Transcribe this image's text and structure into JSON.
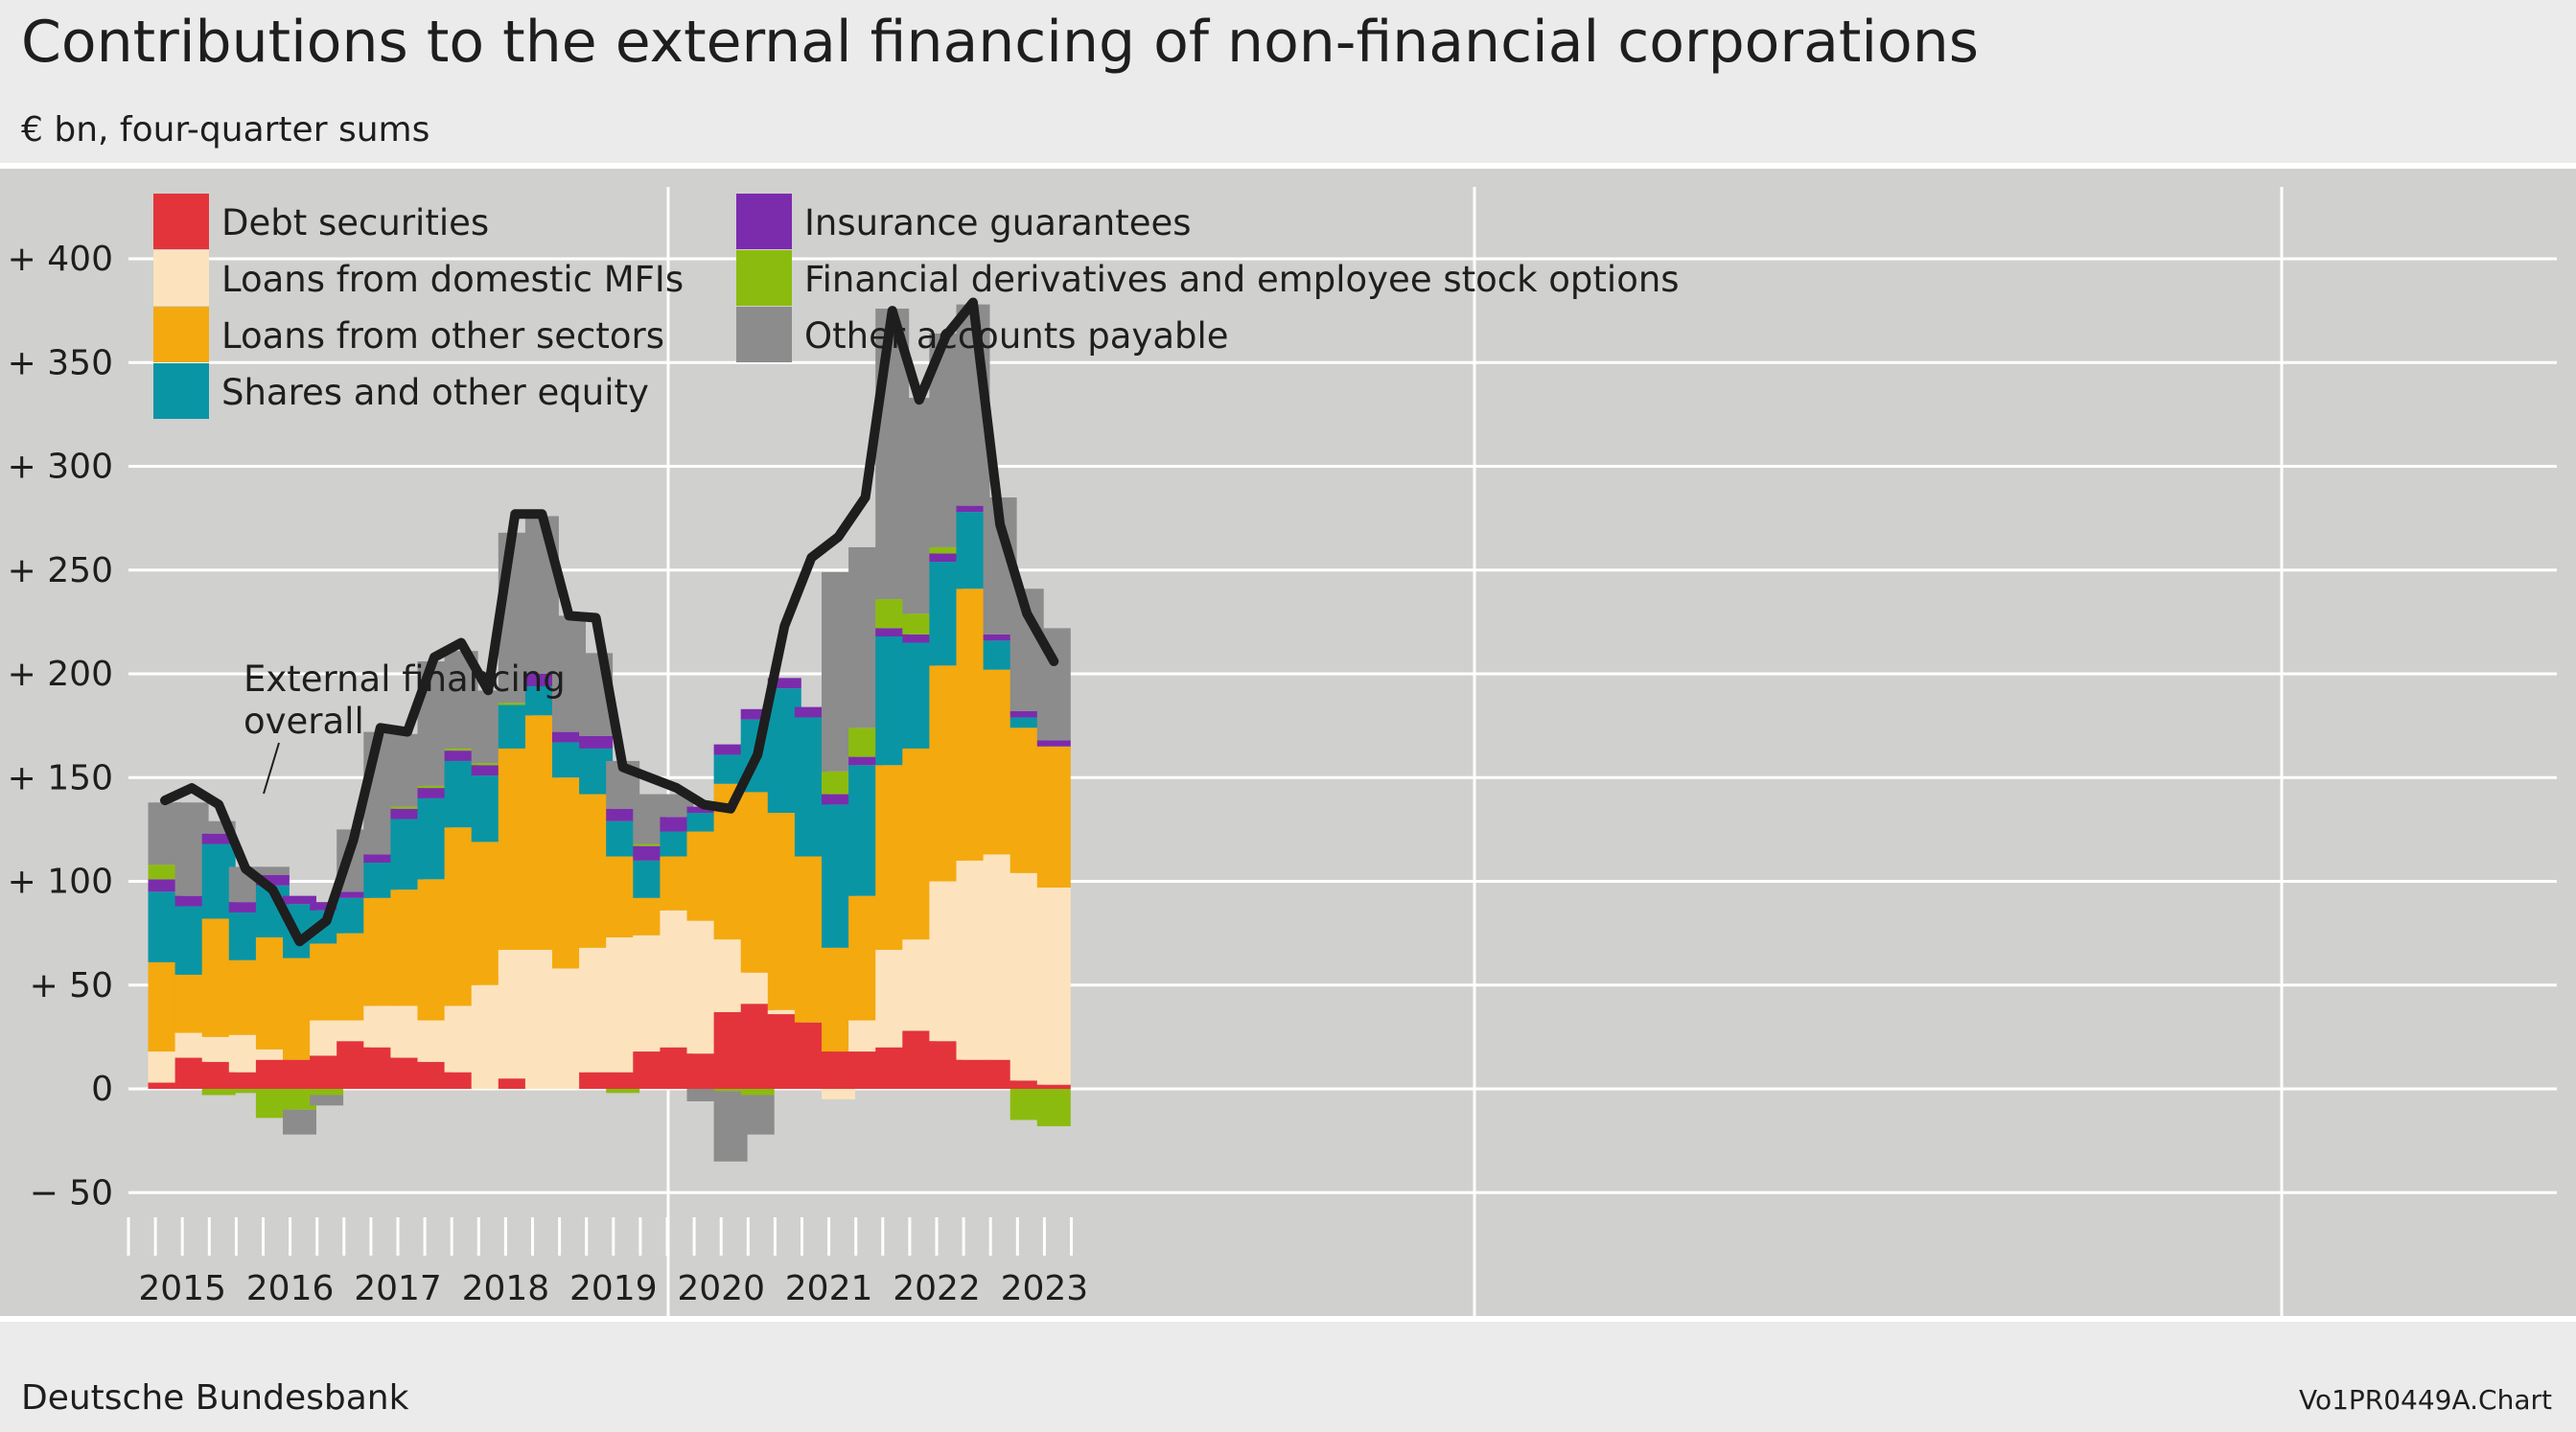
{
  "title": "Contributions to the external financing of non-financial corporations",
  "subtitle": "€ bn, four-quarter sums",
  "source": "Deutsche Bundesbank",
  "chart_code": "Vo1PR0449A.Chart",
  "annotation": {
    "line1": "External financing",
    "line2": "overall"
  },
  "chart_data": {
    "type": "bar",
    "stacked": true,
    "ylim": [
      -60,
      440
    ],
    "yticks": [
      -50,
      0,
      50,
      100,
      150,
      200,
      250,
      300,
      350,
      400
    ],
    "ytick_labels": [
      "− 50",
      "0",
      "+ 50",
      "+ 100",
      "+ 150",
      "+ 200",
      "+ 250",
      "+ 300",
      "+ 350",
      "+ 400"
    ],
    "year_labels": [
      "2015",
      "2016",
      "2017",
      "2018",
      "2019",
      "2020",
      "2021",
      "2022",
      "2023"
    ],
    "categories": [
      "2015 Q1",
      "2015 Q2",
      "2015 Q3",
      "2015 Q4",
      "2016 Q1",
      "2016 Q2",
      "2016 Q3",
      "2016 Q4",
      "2017 Q1",
      "2017 Q2",
      "2017 Q3",
      "2017 Q4",
      "2018 Q1",
      "2018 Q2",
      "2018 Q3",
      "2018 Q4",
      "2019 Q1",
      "2019 Q2",
      "2019 Q3",
      "2019 Q4",
      "2020 Q1",
      "2020 Q2",
      "2020 Q3",
      "2020 Q4",
      "2021 Q1",
      "2021 Q2",
      "2021 Q3",
      "2021 Q4",
      "2022 Q1",
      "2022 Q2",
      "2022 Q3",
      "2022 Q4",
      "2023 Q1",
      "2023 Q2"
    ],
    "series": [
      {
        "name": "Debt securities",
        "color": "#e3343c",
        "values": [
          3,
          15,
          13,
          8,
          14,
          14,
          16,
          23,
          20,
          15,
          13,
          8,
          0,
          5,
          0,
          0,
          8,
          8,
          18,
          20,
          17,
          37,
          41,
          36,
          32,
          18,
          18,
          20,
          28,
          23,
          14,
          14,
          4,
          2
        ]
      },
      {
        "name": "Loans from domestic MFIs",
        "color": "#fde3bd",
        "values": [
          15,
          12,
          12,
          18,
          5,
          0,
          17,
          10,
          20,
          25,
          20,
          32,
          50,
          62,
          67,
          58,
          60,
          65,
          56,
          66,
          64,
          35,
          15,
          2,
          0,
          -5,
          15,
          47,
          44,
          77,
          96,
          99,
          100,
          95
        ]
      },
      {
        "name": "Loans from other sectors",
        "color": "#f4a90e",
        "values": [
          43,
          28,
          57,
          36,
          54,
          49,
          37,
          42,
          52,
          56,
          68,
          86,
          69,
          97,
          113,
          92,
          74,
          39,
          18,
          26,
          43,
          75,
          87,
          95,
          80,
          50,
          60,
          89,
          92,
          104,
          131,
          89,
          70,
          68
        ]
      },
      {
        "name": "Shares and other equity",
        "color": "#0a95a5",
        "values": [
          34,
          33,
          36,
          23,
          25,
          26,
          16,
          17,
          17,
          34,
          39,
          32,
          32,
          21,
          14,
          17,
          22,
          17,
          18,
          12,
          9,
          14,
          35,
          60,
          67,
          69,
          63,
          62,
          51,
          50,
          37,
          14,
          5,
          0
        ]
      },
      {
        "name": "Insurance guarantees",
        "color": "#7b2cad",
        "values": [
          6,
          5,
          5,
          5,
          5,
          4,
          4,
          3,
          4,
          5,
          5,
          5,
          5,
          0,
          6,
          5,
          6,
          6,
          7,
          7,
          3,
          5,
          5,
          5,
          5,
          5,
          4,
          4,
          4,
          4,
          3,
          3,
          3,
          3
        ]
      },
      {
        "name": "Financial derivatives and employee stock options",
        "color": "#8cbb10",
        "values": [
          7,
          0,
          -3,
          -2,
          -14,
          -10,
          -3,
          0,
          0,
          1,
          1,
          1,
          1,
          1,
          0,
          0,
          0,
          -2,
          1,
          0,
          0,
          -1,
          -3,
          0,
          0,
          11,
          14,
          14,
          10,
          3,
          0,
          0,
          -15,
          -18
        ]
      },
      {
        "name": "Other accounts payable",
        "color": "#8c8c8c",
        "values": [
          30,
          45,
          6,
          17,
          4,
          -12,
          -5,
          30,
          59,
          35,
          60,
          47,
          35,
          82,
          76,
          56,
          40,
          23,
          24,
          11,
          -6,
          -34,
          -19,
          0,
          0,
          96,
          87,
          140,
          104,
          103,
          97,
          66,
          59,
          54
        ]
      }
    ],
    "line": {
      "name": "External financing overall",
      "color": "#1e1e1e",
      "values": [
        139,
        145,
        137,
        106,
        96,
        71,
        81,
        120,
        174,
        172,
        208,
        215,
        192,
        277,
        277,
        228,
        227,
        155,
        150,
        145,
        137,
        135,
        161,
        223,
        256,
        266,
        285,
        375,
        332,
        363,
        379,
        272,
        229,
        206
      ]
    }
  }
}
